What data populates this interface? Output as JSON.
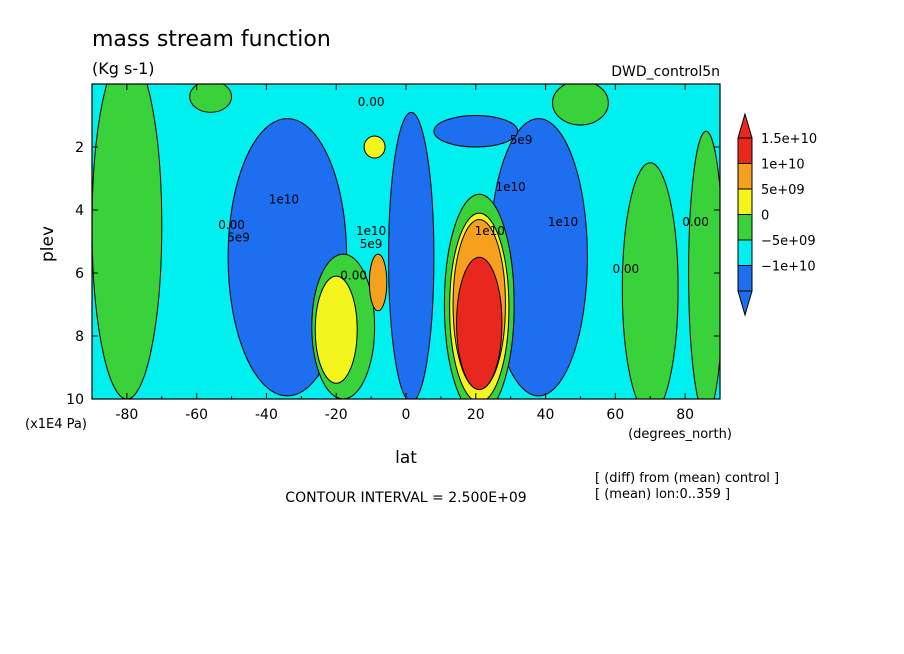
{
  "chart_data": {
    "type": "heatmap",
    "title": "mass stream function",
    "units": "(Kg s-1)",
    "dataset": "DWD_control5n",
    "xlabel": "lat",
    "x_units": "(degrees_north)",
    "ylabel": "plev",
    "y_units": "(x1E4 Pa)",
    "xlim": [
      -90,
      90
    ],
    "ylim": [
      10,
      0
    ],
    "x_ticks": [
      -80,
      -60,
      -40,
      -20,
      0,
      20,
      40,
      60,
      80
    ],
    "y_ticks": [
      2,
      4,
      6,
      8,
      10
    ],
    "contour_interval_text": "CONTOUR INTERVAL = 2.500E+09",
    "notes": [
      "[ (diff) from (mean) control ]",
      "[ (mean) lon:0..359 ]"
    ],
    "colorbar": [
      {
        "label": "1.5e+10",
        "color": "#e8281e"
      },
      {
        "label": "1e+10",
        "color": "#f5a01e"
      },
      {
        "label": "5e+09",
        "color": "#f5f51e"
      },
      {
        "label": "0",
        "color": "#3ad23a"
      },
      {
        "label": "−5e+09",
        "color": "#00f0f0"
      },
      {
        "label": "−1e+10",
        "color": "#1e6ef0"
      }
    ],
    "contour_labels": [
      {
        "text": "0.00",
        "lat": -10,
        "plev": 0.7
      },
      {
        "text": "5e9",
        "lat": 33,
        "plev": 1.9
      },
      {
        "text": "1e10",
        "lat": -35,
        "plev": 3.8
      },
      {
        "text": "1e10",
        "lat": 30,
        "plev": 3.4
      },
      {
        "text": "1e10",
        "lat": -10,
        "plev": 4.8
      },
      {
        "text": "5e9",
        "lat": -48,
        "plev": 5.0
      },
      {
        "text": "0.00",
        "lat": -50,
        "plev": 4.6
      },
      {
        "text": "5e9",
        "lat": -10,
        "plev": 5.2
      },
      {
        "text": "0.00",
        "lat": -15,
        "plev": 6.2
      },
      {
        "text": "1e10",
        "lat": 24,
        "plev": 4.8
      },
      {
        "text": "1e10",
        "lat": 45,
        "plev": 4.5
      },
      {
        "text": "0.00",
        "lat": 63,
        "plev": 6.0
      },
      {
        "text": "0.00",
        "lat": 83,
        "plev": 4.5
      }
    ],
    "regions": [
      {
        "name": "upper-left-positive",
        "lat": -56,
        "plev": 0.4,
        "rx": 6,
        "ry": 0.5,
        "color": "#3ad23a"
      },
      {
        "name": "left-positive-column",
        "lat": -80,
        "plev": 4.5,
        "rx": 10,
        "ry": 5.5,
        "color": "#3ad23a"
      },
      {
        "name": "upper-right-positive",
        "lat": 50,
        "plev": 0.6,
        "rx": 8,
        "ry": 0.7,
        "color": "#3ad23a"
      },
      {
        "name": "right-positive-column-a",
        "lat": 70,
        "plev": 6.5,
        "rx": 8,
        "ry": 4.0,
        "color": "#3ad23a"
      },
      {
        "name": "right-positive-column-b",
        "lat": 86,
        "plev": 6.0,
        "rx": 5,
        "ry": 4.5,
        "color": "#3ad23a"
      },
      {
        "name": "left-negative-cell",
        "lat": -34,
        "plev": 5.5,
        "rx": 17,
        "ry": 4.4,
        "color": "#1e6ef0"
      },
      {
        "name": "right-negative-cell",
        "lat": 38,
        "plev": 5.5,
        "rx": 14,
        "ry": 4.4,
        "color": "#1e6ef0"
      },
      {
        "name": "upper-right-negative",
        "lat": 20,
        "plev": 1.5,
        "rx": 12,
        "ry": 0.5,
        "color": "#1e6ef0"
      },
      {
        "name": "left-positive-ring",
        "lat": -18,
        "plev": 7.7,
        "rx": 9,
        "ry": 2.3,
        "color": "#3ad23a"
      },
      {
        "name": "left-positive-core",
        "lat": -20,
        "plev": 7.8,
        "rx": 6,
        "ry": 1.7,
        "color": "#f5f51e"
      },
      {
        "name": "left-positive-small",
        "lat": -8,
        "plev": 6.3,
        "rx": 2.5,
        "ry": 0.9,
        "color": "#f5a01e"
      },
      {
        "name": "top-left-positive",
        "lat": -9,
        "plev": 2.0,
        "rx": 3,
        "ry": 0.35,
        "color": "#f5f51e"
      },
      {
        "name": "right-positive-ring",
        "lat": 21,
        "plev": 7.0,
        "rx": 10,
        "ry": 3.5,
        "color": "#3ad23a"
      },
      {
        "name": "right-positive-mid",
        "lat": 21,
        "plev": 7.1,
        "rx": 8.5,
        "ry": 3.0,
        "color": "#f5f51e"
      },
      {
        "name": "right-positive-high",
        "lat": 21,
        "plev": 7.0,
        "rx": 7.5,
        "ry": 2.7,
        "color": "#f5a01e"
      },
      {
        "name": "right-positive-core",
        "lat": 21,
        "plev": 7.6,
        "rx": 6.5,
        "ry": 2.1,
        "color": "#e8281e"
      },
      {
        "name": "equatorial-negative-column",
        "lat": 1.5,
        "plev": 5.5,
        "rx": 6.5,
        "ry": 4.6,
        "color": "#1e6ef0"
      }
    ]
  }
}
